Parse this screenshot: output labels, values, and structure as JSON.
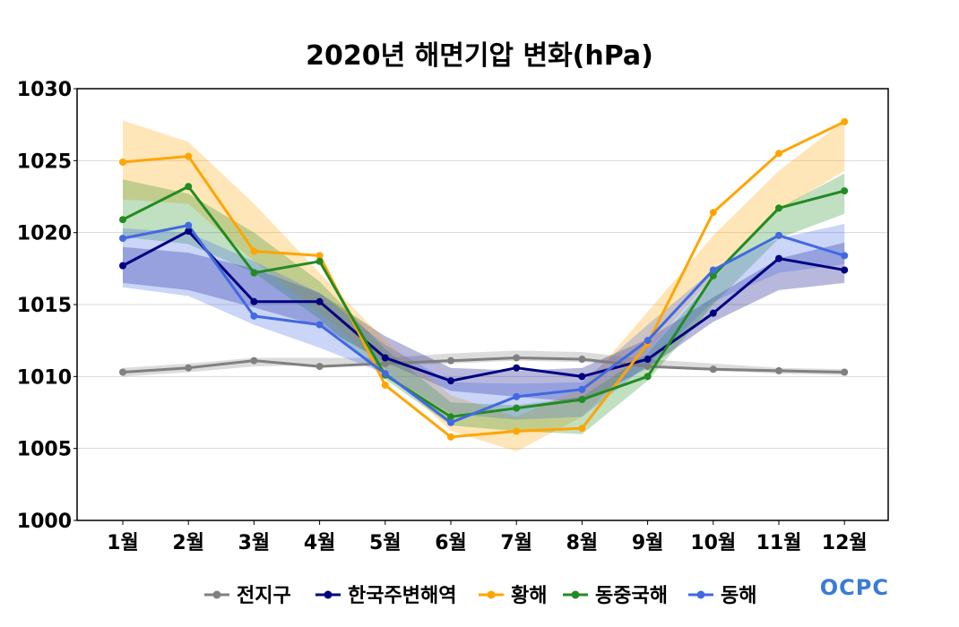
{
  "chart_data": {
    "type": "line",
    "title": "2020년 해면기압 변화(hPa)",
    "xlabel": "",
    "ylabel": "",
    "categories": [
      "1월",
      "2월",
      "3월",
      "4월",
      "5월",
      "6월",
      "7월",
      "8월",
      "9월",
      "10월",
      "11월",
      "12월"
    ],
    "ylim": [
      1000,
      1030
    ],
    "yticks": [
      1000,
      1005,
      1010,
      1015,
      1020,
      1025,
      1030
    ],
    "grid": true,
    "legend_position": "bottom",
    "series": [
      {
        "name": "전지구",
        "color": "#808080",
        "values": [
          1010.3,
          1010.6,
          1011.1,
          1010.7,
          1010.9,
          1011.1,
          1011.3,
          1011.2,
          1010.7,
          1010.5,
          1010.4,
          1010.3
        ],
        "band_low": [
          1010.0,
          1010.3,
          1010.7,
          1010.8,
          1010.8,
          1010.9,
          1011.1,
          1011.0,
          1010.7,
          1010.4,
          1010.2,
          1010.1
        ],
        "band_high": [
          1010.6,
          1010.9,
          1011.3,
          1011.3,
          1011.3,
          1011.6,
          1011.8,
          1011.7,
          1011.2,
          1010.9,
          1010.6,
          1010.5
        ]
      },
      {
        "name": "한국주변해역",
        "color": "#000080",
        "values": [
          1017.7,
          1020.1,
          1015.2,
          1015.2,
          1011.3,
          1009.7,
          1010.6,
          1010.0,
          1011.2,
          1014.4,
          1018.2,
          1017.4
        ],
        "band_low": [
          1016.5,
          1016.0,
          1014.8,
          1013.5,
          1011.0,
          1009.0,
          1008.6,
          1008.2,
          1010.6,
          1013.8,
          1016.0,
          1016.5
        ],
        "band_high": [
          1019.0,
          1018.6,
          1017.5,
          1015.8,
          1012.8,
          1010.6,
          1010.4,
          1010.6,
          1012.6,
          1015.5,
          1018.2,
          1019.3
        ]
      },
      {
        "name": "황해",
        "color": "#FFA500",
        "values": [
          1024.9,
          1025.3,
          1018.7,
          1018.4,
          1009.4,
          1005.8,
          1006.2,
          1006.4,
          1012.3,
          1021.4,
          1025.5,
          1027.7
        ],
        "band_low": [
          1022.3,
          1022.0,
          1018.0,
          1014.5,
          1010.5,
          1006.2,
          1004.8,
          1007.2,
          1011.8,
          1017.0,
          1021.5,
          1024.3
        ],
        "band_high": [
          1027.8,
          1026.3,
          1022.0,
          1017.2,
          1012.5,
          1008.7,
          1007.2,
          1009.2,
          1014.5,
          1019.8,
          1024.3,
          1027.8
        ]
      },
      {
        "name": "동중국해",
        "color": "#228B22",
        "values": [
          1020.9,
          1023.2,
          1017.2,
          1018.0,
          1010.1,
          1007.2,
          1007.8,
          1008.4,
          1010.0,
          1017.0,
          1021.7,
          1022.9
        ],
        "band_low": [
          1019.7,
          1019.2,
          1017.2,
          1014.0,
          1009.8,
          1006.6,
          1006.2,
          1006.0,
          1009.7,
          1015.0,
          1019.6,
          1021.3
        ],
        "band_high": [
          1023.7,
          1022.7,
          1020.0,
          1016.6,
          1011.9,
          1008.2,
          1008.0,
          1008.6,
          1011.6,
          1016.8,
          1021.7,
          1024.1
        ]
      },
      {
        "name": "동해",
        "color": "#4169E1",
        "values": [
          1019.6,
          1020.5,
          1014.2,
          1013.6,
          1010.2,
          1006.8,
          1008.6,
          1009.1,
          1012.5,
          1017.4,
          1019.8,
          1018.4
        ],
        "band_low": [
          1016.2,
          1015.6,
          1013.6,
          1012.0,
          1010.2,
          1007.4,
          1007.0,
          1007.2,
          1010.8,
          1015.2,
          1017.2,
          1017.8
        ],
        "band_high": [
          1020.3,
          1020.0,
          1018.0,
          1015.8,
          1012.2,
          1009.6,
          1009.5,
          1009.6,
          1013.6,
          1017.4,
          1019.6,
          1020.6
        ]
      }
    ]
  },
  "logo_text": "OCPC"
}
